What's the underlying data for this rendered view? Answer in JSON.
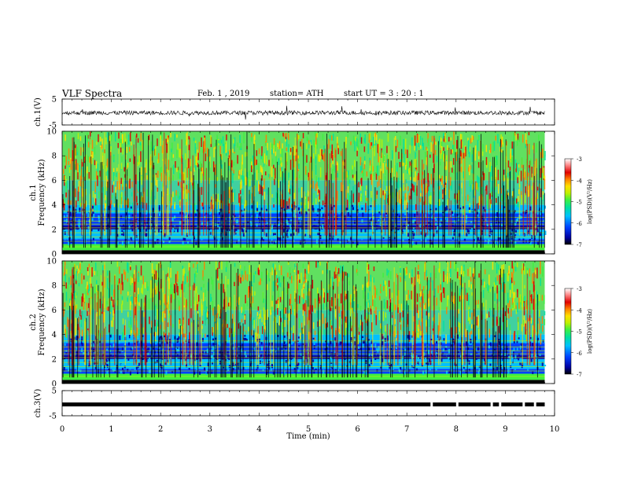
{
  "header": {
    "title": "VLF  Spectra",
    "date": "Feb. 1  , 2019",
    "station": "station= ATH",
    "start": "start  UT  =    3  : 20 : 1"
  },
  "chart_data": [
    {
      "type": "line",
      "name": "ch1-waveform",
      "ylabel": "ch.1(V)",
      "ylim": [
        -5,
        5
      ],
      "yticks": [
        5,
        -5
      ],
      "xlim": [
        0,
        10
      ],
      "data_extent_min": 9.8,
      "baseline_v": -0.3,
      "color": "#000000"
    },
    {
      "type": "heatmap",
      "name": "ch1-spectrogram",
      "ylabel": "ch.1\nFrequency  (kHz)",
      "ylim": [
        0,
        10
      ],
      "yticks": [
        0,
        2,
        4,
        6,
        8,
        10
      ],
      "xlim": [
        0,
        10
      ],
      "data_extent_min": 9.8,
      "colorbar": {
        "label": "log(PSD)(V²/Hz)",
        "range": [
          -7,
          -3
        ],
        "ticks": [
          -3,
          -4,
          -5,
          -6,
          -7
        ],
        "colors": [
          "#000000",
          "#0000a0",
          "#0040ff",
          "#00c0ff",
          "#00e0a0",
          "#40f040",
          "#c0f000",
          "#ffe000",
          "#ff8000",
          "#e00000",
          "#ff9090",
          "#ffffff"
        ]
      }
    },
    {
      "type": "heatmap",
      "name": "ch2-spectrogram",
      "ylabel": "ch.2\nFrequency  (kHz)",
      "ylim": [
        0,
        10
      ],
      "yticks": [
        0,
        2,
        4,
        6,
        8,
        10
      ],
      "xlim": [
        0,
        10
      ],
      "data_extent_min": 9.8,
      "colorbar": {
        "label": "log(PSD)(V²/Hz)",
        "range": [
          -7,
          -3
        ],
        "ticks": [
          -3,
          -4,
          -5,
          -6,
          -7
        ]
      }
    },
    {
      "type": "line",
      "name": "ch3-waveform",
      "ylabel": "ch.3(V)",
      "ylim": [
        -5,
        5
      ],
      "yticks": [
        5,
        -5
      ],
      "xlim": [
        0,
        10
      ],
      "data_extent_min": 9.8,
      "baseline_v": -0.5,
      "gaps_min": [
        7.48,
        8.0,
        8.7,
        8.87,
        9.35,
        9.58
      ]
    }
  ],
  "xaxis": {
    "label": "Time  (min)",
    "ticks": [
      0,
      1,
      2,
      3,
      4,
      5,
      6,
      7,
      8,
      9,
      10
    ]
  }
}
